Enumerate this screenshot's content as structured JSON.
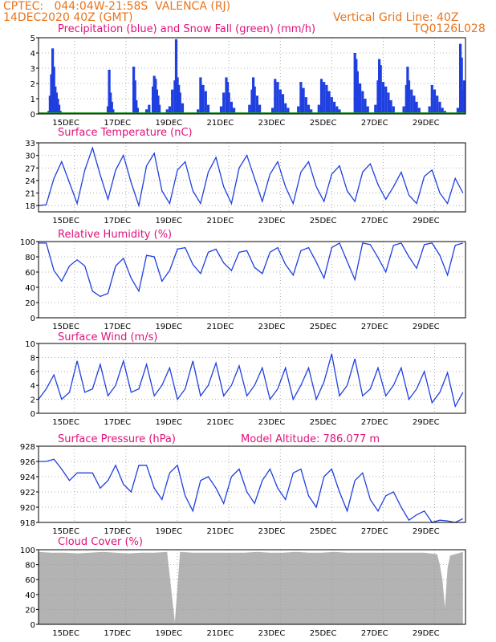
{
  "header": {
    "line1": "CPTEC:   044:04W-21:58S  VALENCA (RJ)",
    "line2": "14DEC2020 40Z (GMT)",
    "right1": "Vertical Grid Line: 40Z",
    "right2": "TQ0126L028"
  },
  "colors": {
    "title": "#e0107a",
    "header": "#e8741c",
    "series": "#1f3fe0",
    "cloud": "#b3b3b3",
    "snow": "#1a9a1a"
  },
  "x_labels": [
    "15DEC",
    "17DEC",
    "19DEC",
    "21DEC",
    "23DEC",
    "25DEC",
    "27DEC",
    "29DEC"
  ],
  "chart_data": [
    {
      "type": "bar",
      "title": "Precipitation (blue) and Snow Fall (green) (mm/h)",
      "ylim": [
        0,
        5
      ],
      "yticks": [
        0,
        1,
        2,
        3,
        4,
        5
      ],
      "series": [
        {
          "name": "Precipitation",
          "points": [
            [
              0.4,
              0.2
            ],
            [
              0.45,
              1.2
            ],
            [
              0.5,
              2.6
            ],
            [
              0.55,
              4.3
            ],
            [
              0.6,
              3.1
            ],
            [
              0.65,
              1.8
            ],
            [
              0.7,
              1.4
            ],
            [
              0.75,
              1.0
            ],
            [
              0.8,
              0.6
            ],
            [
              0.85,
              0.2
            ],
            [
              2.7,
              0.5
            ],
            [
              2.75,
              2.9
            ],
            [
              2.8,
              1.4
            ],
            [
              2.85,
              0.8
            ],
            [
              2.9,
              0.3
            ],
            [
              3.7,
              3.1
            ],
            [
              3.75,
              2.2
            ],
            [
              3.8,
              0.9
            ],
            [
              3.85,
              0.4
            ],
            [
              4.2,
              0.3
            ],
            [
              4.3,
              0.6
            ],
            [
              4.45,
              1.8
            ],
            [
              4.5,
              2.5
            ],
            [
              4.55,
              2.3
            ],
            [
              4.6,
              1.6
            ],
            [
              4.65,
              1.2
            ],
            [
              4.7,
              0.6
            ],
            [
              5.0,
              0.3
            ],
            [
              5.1,
              0.5
            ],
            [
              5.2,
              1.6
            ],
            [
              5.3,
              2.2
            ],
            [
              5.35,
              4.9
            ],
            [
              5.4,
              2.4
            ],
            [
              5.45,
              1.9
            ],
            [
              5.5,
              1.4
            ],
            [
              5.6,
              0.7
            ],
            [
              6.2,
              0.3
            ],
            [
              6.3,
              2.4
            ],
            [
              6.4,
              1.9
            ],
            [
              6.5,
              1.5
            ],
            [
              6.6,
              0.6
            ],
            [
              7.1,
              0.5
            ],
            [
              7.2,
              1.4
            ],
            [
              7.3,
              2.4
            ],
            [
              7.35,
              2.1
            ],
            [
              7.4,
              1.4
            ],
            [
              7.5,
              0.8
            ],
            [
              7.6,
              0.4
            ],
            [
              8.2,
              0.6
            ],
            [
              8.3,
              1.6
            ],
            [
              8.35,
              2.4
            ],
            [
              8.4,
              1.8
            ],
            [
              8.5,
              1.2
            ],
            [
              8.6,
              0.6
            ],
            [
              9.1,
              0.4
            ],
            [
              9.2,
              2.3
            ],
            [
              9.3,
              2.1
            ],
            [
              9.4,
              1.6
            ],
            [
              9.5,
              1.3
            ],
            [
              9.6,
              0.7
            ],
            [
              9.7,
              0.4
            ],
            [
              10.1,
              0.5
            ],
            [
              10.2,
              2.1
            ],
            [
              10.3,
              1.7
            ],
            [
              10.4,
              1.1
            ],
            [
              10.5,
              0.6
            ],
            [
              10.6,
              0.3
            ],
            [
              10.9,
              0.6
            ],
            [
              11.0,
              2.3
            ],
            [
              11.1,
              2.1
            ],
            [
              11.2,
              1.9
            ],
            [
              11.3,
              1.5
            ],
            [
              11.4,
              1.1
            ],
            [
              11.5,
              0.8
            ],
            [
              11.6,
              0.5
            ],
            [
              11.7,
              0.3
            ],
            [
              12.3,
              4.0
            ],
            [
              12.35,
              3.6
            ],
            [
              12.4,
              2.8
            ],
            [
              12.5,
              2.0
            ],
            [
              12.6,
              1.5
            ],
            [
              12.7,
              1.0
            ],
            [
              12.8,
              0.5
            ],
            [
              13.1,
              0.6
            ],
            [
              13.2,
              2.2
            ],
            [
              13.25,
              3.6
            ],
            [
              13.3,
              3.2
            ],
            [
              13.4,
              2.1
            ],
            [
              13.5,
              1.8
            ],
            [
              13.6,
              1.4
            ],
            [
              13.7,
              0.9
            ],
            [
              13.8,
              0.5
            ],
            [
              14.2,
              0.5
            ],
            [
              14.3,
              1.9
            ],
            [
              14.35,
              3.1
            ],
            [
              14.4,
              2.2
            ],
            [
              14.5,
              1.6
            ],
            [
              14.6,
              1.2
            ],
            [
              14.7,
              0.8
            ],
            [
              14.8,
              0.4
            ],
            [
              15.2,
              0.5
            ],
            [
              15.3,
              1.9
            ],
            [
              15.4,
              1.6
            ],
            [
              15.5,
              1.2
            ],
            [
              15.6,
              0.8
            ],
            [
              15.7,
              0.4
            ],
            [
              15.8,
              0.2
            ],
            [
              16.3,
              0.4
            ],
            [
              16.4,
              4.6
            ],
            [
              16.45,
              3.7
            ],
            [
              16.5,
              1.6
            ],
            [
              16.55,
              2.2
            ]
          ]
        },
        {
          "name": "Snow Fall",
          "points": [
            [
              0.0,
              0.0
            ],
            [
              16.6,
              0.0
            ]
          ]
        }
      ]
    },
    {
      "type": "line",
      "title": "Surface Temperature (nC)",
      "ylim": [
        16.5,
        33
      ],
      "yticks": [
        18,
        21,
        24,
        27,
        30,
        33
      ],
      "x": [
        0.0,
        0.3,
        0.6,
        0.9,
        1.2,
        1.5,
        1.8,
        2.1,
        2.4,
        2.7,
        3.0,
        3.3,
        3.6,
        3.9,
        4.2,
        4.5,
        4.8,
        5.1,
        5.4,
        5.7,
        6.0,
        6.3,
        6.6,
        6.9,
        7.2,
        7.5,
        7.8,
        8.1,
        8.4,
        8.7,
        9.0,
        9.3,
        9.6,
        9.9,
        10.2,
        10.5,
        10.8,
        11.1,
        11.4,
        11.7,
        12.0,
        12.3,
        12.6,
        12.9,
        13.2,
        13.5,
        13.8,
        14.1,
        14.4,
        14.7,
        15.0,
        15.3,
        15.6,
        15.9,
        16.2,
        16.5
      ],
      "values": [
        18,
        18.2,
        24.5,
        28.5,
        23.5,
        18.5,
        26.5,
        31.8,
        25.3,
        19.5,
        26.5,
        30,
        23.5,
        18,
        27.5,
        30.5,
        21.5,
        18.5,
        26.5,
        28.5,
        21.5,
        18.5,
        26,
        29.5,
        22.5,
        18.5,
        27,
        30,
        24.5,
        19,
        25.5,
        28.5,
        22.5,
        18.5,
        26,
        28.5,
        22.5,
        19,
        25.5,
        27.5,
        21.5,
        19,
        26,
        28,
        23,
        19.5,
        22.5,
        26,
        20.5,
        18.5,
        25,
        26.5,
        21,
        18.5,
        24.5,
        21
      ]
    },
    {
      "type": "line",
      "title": "Relative Humidity (%)",
      "ylim": [
        0,
        100
      ],
      "yticks": [
        0,
        20,
        40,
        60,
        80,
        100
      ],
      "x": [
        0.0,
        0.3,
        0.6,
        0.9,
        1.2,
        1.5,
        1.8,
        2.1,
        2.4,
        2.7,
        3.0,
        3.3,
        3.6,
        3.9,
        4.2,
        4.5,
        4.8,
        5.1,
        5.4,
        5.7,
        6.0,
        6.3,
        6.6,
        6.9,
        7.2,
        7.5,
        7.8,
        8.1,
        8.4,
        8.7,
        9.0,
        9.3,
        9.6,
        9.9,
        10.2,
        10.5,
        10.8,
        11.1,
        11.4,
        11.7,
        12.0,
        12.3,
        12.6,
        12.9,
        13.2,
        13.5,
        13.8,
        14.1,
        14.4,
        14.7,
        15.0,
        15.3,
        15.6,
        15.9,
        16.2,
        16.5
      ],
      "values": [
        98,
        98,
        62,
        48,
        68,
        76,
        68,
        35,
        28,
        32,
        68,
        78,
        52,
        35,
        82,
        80,
        48,
        62,
        90,
        92,
        70,
        58,
        86,
        90,
        72,
        62,
        86,
        88,
        66,
        58,
        86,
        92,
        70,
        56,
        88,
        92,
        73,
        52,
        92,
        98,
        74,
        50,
        98,
        96,
        79,
        60,
        95,
        98,
        80,
        65,
        96,
        98,
        82,
        56,
        95,
        98
      ]
    },
    {
      "type": "line",
      "title": "Surface Wind (m/s)",
      "ylim": [
        0,
        10
      ],
      "yticks": [
        0,
        2,
        4,
        6,
        8,
        10
      ],
      "x": [
        0.0,
        0.3,
        0.6,
        0.9,
        1.2,
        1.5,
        1.8,
        2.1,
        2.4,
        2.7,
        3.0,
        3.3,
        3.6,
        3.9,
        4.2,
        4.5,
        4.8,
        5.1,
        5.4,
        5.7,
        6.0,
        6.3,
        6.6,
        6.9,
        7.2,
        7.5,
        7.8,
        8.1,
        8.4,
        8.7,
        9.0,
        9.3,
        9.6,
        9.9,
        10.2,
        10.5,
        10.8,
        11.1,
        11.4,
        11.7,
        12.0,
        12.3,
        12.6,
        12.9,
        13.2,
        13.5,
        13.8,
        14.1,
        14.4,
        14.7,
        15.0,
        15.3,
        15.6,
        15.9,
        16.2,
        16.5
      ],
      "values": [
        2,
        3.5,
        5.5,
        2,
        3,
        7.5,
        3,
        3.5,
        7,
        2.5,
        4,
        7.5,
        3,
        3.5,
        7,
        2.5,
        4,
        6.5,
        2,
        3.5,
        7.5,
        2.5,
        4,
        7.2,
        2.5,
        4,
        6.8,
        2.5,
        4,
        6.5,
        2,
        3.5,
        6.5,
        2,
        4,
        6.5,
        2,
        4.5,
        8.5,
        2.5,
        4,
        7.8,
        2.5,
        3.5,
        6.5,
        2.5,
        4,
        6.5,
        2,
        3.5,
        6,
        1.5,
        3,
        5.8,
        1,
        3
      ]
    },
    {
      "type": "line",
      "title": "Surface Pressure (hPa)",
      "annotation": "Model Altitude: 786.077 m",
      "ylim": [
        918,
        928
      ],
      "yticks": [
        918,
        920,
        922,
        924,
        926,
        928
      ],
      "x": [
        0.0,
        0.3,
        0.6,
        0.9,
        1.2,
        1.5,
        1.8,
        2.1,
        2.4,
        2.7,
        3.0,
        3.3,
        3.6,
        3.9,
        4.2,
        4.5,
        4.8,
        5.1,
        5.4,
        5.7,
        6.0,
        6.3,
        6.6,
        6.9,
        7.2,
        7.5,
        7.8,
        8.1,
        8.4,
        8.7,
        9.0,
        9.3,
        9.6,
        9.9,
        10.2,
        10.5,
        10.8,
        11.1,
        11.4,
        11.7,
        12.0,
        12.3,
        12.6,
        12.9,
        13.2,
        13.5,
        13.8,
        14.1,
        14.4,
        14.7,
        15.0,
        15.3,
        15.6,
        15.9,
        16.2,
        16.5
      ],
      "values": [
        926,
        926,
        926.3,
        925,
        923.5,
        924.5,
        924.5,
        924.5,
        922.5,
        923.5,
        925.5,
        923,
        922,
        925.5,
        925.5,
        922.5,
        921,
        924.5,
        925.5,
        921.5,
        919.5,
        923.5,
        924,
        922.5,
        920.5,
        924,
        925,
        922,
        920.5,
        923.5,
        925,
        922.5,
        921,
        924.5,
        925,
        921.5,
        920,
        924,
        925,
        922,
        919.5,
        923.5,
        924.5,
        921,
        919.5,
        921.5,
        922,
        920,
        918.3,
        919,
        919.5,
        918,
        918.3,
        918.2,
        918,
        918.5
      ]
    },
    {
      "type": "area",
      "title": "Cloud Cover (%)",
      "ylim": [
        0,
        100
      ],
      "yticks": [
        0,
        20,
        40,
        60,
        80,
        100
      ],
      "x": [
        0.0,
        0.5,
        1.0,
        1.5,
        2.0,
        2.5,
        3.0,
        3.5,
        4.0,
        4.5,
        5.0,
        5.3,
        5.5,
        6.0,
        6.5,
        7.0,
        7.5,
        8.0,
        8.5,
        9.0,
        9.5,
        10.0,
        10.5,
        11.0,
        11.5,
        12.0,
        12.5,
        13.0,
        13.5,
        14.0,
        14.5,
        15.0,
        15.5,
        15.6,
        15.7,
        15.8,
        15.9,
        16.0,
        16.5
      ],
      "values": [
        97,
        96,
        96,
        95,
        96,
        97,
        96,
        95,
        96,
        96,
        97,
        3,
        97,
        96,
        96,
        96,
        96,
        96,
        97,
        96,
        96,
        97,
        96,
        96,
        97,
        96,
        96,
        96,
        96,
        96,
        96,
        96,
        94,
        80,
        60,
        22,
        75,
        92,
        97
      ]
    }
  ]
}
